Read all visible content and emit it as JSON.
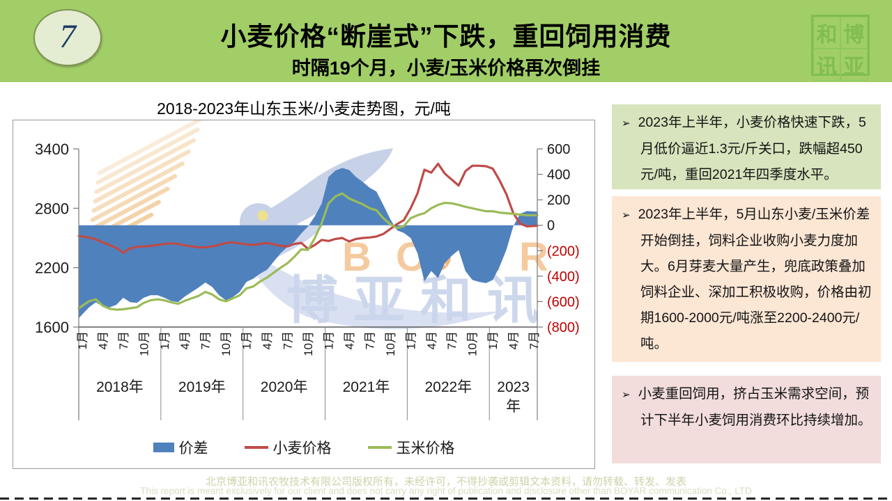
{
  "header": {
    "slide_number": "7",
    "title": "小麦价格“断崖式”下跌，重回饲用消费",
    "subtitle": "时隔19个月，小麦/玉米价格再次倒挂",
    "header_bg": "#A1CE66",
    "logo_chars": [
      "和",
      "博",
      "讯",
      "亚"
    ]
  },
  "watermark": {
    "en": "BOYAR",
    "cn": "博亚和讯"
  },
  "chart_data": {
    "type": "combo",
    "title": "2018-2023年山东玉米/小麦走势图，元/吨",
    "unit": "元/吨",
    "years": [
      "2018年",
      "2019年",
      "2020年",
      "2021年",
      "2022年",
      "2023年"
    ],
    "months_per_year": [
      12,
      12,
      12,
      12,
      12,
      7
    ],
    "month_tick_labels": [
      "1月",
      "4月",
      "7月",
      "10月"
    ],
    "left_axis": {
      "min": 1600,
      "max": 3400,
      "ticks": [
        3400,
        2800,
        2200,
        1600
      ]
    },
    "right_axis": {
      "min": -800,
      "max": 600,
      "ticks": [
        {
          "v": 600,
          "label": "600"
        },
        {
          "v": 400,
          "label": "400"
        },
        {
          "v": 200,
          "label": "200"
        },
        {
          "v": 0,
          "label": "0"
        },
        {
          "v": -200,
          "label": "(200)"
        },
        {
          "v": -400,
          "label": "(400)"
        },
        {
          "v": -600,
          "label": "(600)"
        },
        {
          "v": -800,
          "label": "(800)"
        }
      ]
    },
    "legend_position": "bottom",
    "series": [
      {
        "name": "价差",
        "type": "area",
        "axis": "right",
        "color": "#4F81BD",
        "values": [
          -730,
          -645,
          -605,
          -640,
          -645,
          -625,
          -570,
          -605,
          -610,
          -570,
          -550,
          -550,
          -570,
          -595,
          -605,
          -560,
          -525,
          -490,
          -450,
          -485,
          -550,
          -590,
          -565,
          -525,
          -445,
          -420,
          -380,
          -350,
          -285,
          -220,
          -170,
          -130,
          -65,
          -10,
          70,
          170,
          380,
          430,
          450,
          435,
          380,
          340,
          295,
          265,
          160,
          50,
          -40,
          -60,
          -100,
          -220,
          -440,
          -360,
          -415,
          -295,
          -240,
          -195,
          -360,
          -430,
          -445,
          -455,
          -430,
          -324,
          -190,
          -7,
          91,
          112,
          106
        ]
      },
      {
        "name": "小麦价格",
        "type": "line",
        "axis": "left",
        "color": "#BE4B48",
        "values": [
          2520,
          2505,
          2485,
          2455,
          2430,
          2400,
          2350,
          2395,
          2410,
          2415,
          2420,
          2430,
          2440,
          2445,
          2440,
          2425,
          2415,
          2405,
          2405,
          2415,
          2430,
          2450,
          2455,
          2445,
          2435,
          2430,
          2440,
          2450,
          2435,
          2420,
          2415,
          2440,
          2450,
          2390,
          2430,
          2480,
          2470,
          2490,
          2500,
          2465,
          2490,
          2500,
          2505,
          2515,
          2540,
          2590,
          2640,
          2680,
          2800,
          2950,
          3190,
          3160,
          3250,
          3150,
          3090,
          3030,
          3175,
          3230,
          3230,
          3225,
          3200,
          3080,
          2940,
          2750,
          2645,
          2617,
          2624
        ]
      },
      {
        "name": "玉米价格",
        "type": "line",
        "axis": "left",
        "color": "#9BBB59",
        "values": [
          1790,
          1860,
          1880,
          1815,
          1785,
          1775,
          1780,
          1790,
          1800,
          1845,
          1870,
          1880,
          1870,
          1850,
          1835,
          1865,
          1890,
          1915,
          1955,
          1930,
          1880,
          1860,
          1890,
          1920,
          1990,
          2010,
          2060,
          2100,
          2150,
          2200,
          2245,
          2310,
          2385,
          2380,
          2500,
          2650,
          2850,
          2920,
          2950,
          2900,
          2870,
          2840,
          2800,
          2780,
          2700,
          2640,
          2600,
          2620,
          2700,
          2730,
          2750,
          2800,
          2835,
          2855,
          2850,
          2835,
          2815,
          2800,
          2785,
          2770,
          2770,
          2756,
          2750,
          2743,
          2736,
          2729,
          2730
        ]
      }
    ]
  },
  "notes": [
    {
      "bullet": "➢",
      "text": "2023年上半年，小麦价格快速下跌，5月低价逼近1.3元/斤关口，跌幅超450元/吨，重回2021年四季度水平。",
      "bg": "#D7E4BD"
    },
    {
      "bullet": "➢",
      "text": "2023年上半年，5月山东小麦/玉米价差开始倒挂，饲料企业收购小麦力度加大。6月芽麦大量产生，兜底政策叠加饲料企业、深加工积极收购，价格由初期1600-2000元/吨涨至2200-2400元/吨。",
      "bg": "#FCE6D4"
    },
    {
      "bullet": "➢",
      "text": "小麦重回饲用，挤占玉米需求空间，预计下半年小麦饲用消费环比持续增加。",
      "bg": "#F2DCDC"
    }
  ],
  "footer": {
    "line1": "北京博亚和讯农牧技术有限公司版权所有，未经许可，不得抄袭或剪辑文本资料，请勿转载、转发、发表",
    "line2": "This report is meant exclusively for our client and does not carry any right of publication and disclosure other than BOYAR communication Co., LTD"
  }
}
